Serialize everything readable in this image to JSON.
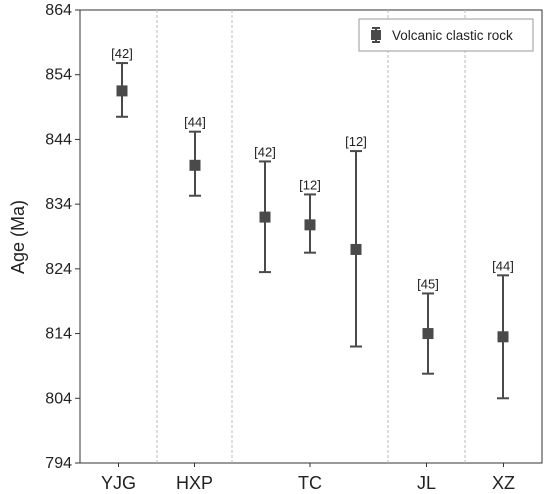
{
  "chart_data": {
    "type": "scatter",
    "ylabel": "Age (Ma)",
    "xlabel": "",
    "ylim": [
      794,
      864
    ],
    "yticks": [
      794,
      804,
      814,
      824,
      834,
      844,
      854,
      864
    ],
    "grid": "vertical dashed separators between groups",
    "legend": {
      "position": "top-right",
      "entries": [
        "Volcanic clastic rock"
      ]
    },
    "categories": [
      "YJG",
      "HXP",
      "TC",
      "JL",
      "XZ"
    ],
    "series": [
      {
        "name": "Volcanic clastic rock",
        "color": "#4a4a4a",
        "marker": "square",
        "points": [
          {
            "group": "YJG",
            "value": 851.5,
            "lower": 847.5,
            "upper": 855.8,
            "ref": "[42]"
          },
          {
            "group": "HXP",
            "value": 840.0,
            "lower": 835.3,
            "upper": 845.2,
            "ref": "[44]"
          },
          {
            "group": "TC",
            "value": 832.0,
            "lower": 823.5,
            "upper": 840.6,
            "ref": "[42]"
          },
          {
            "group": "TC",
            "value": 830.8,
            "lower": 826.5,
            "upper": 835.5,
            "ref": "[12]"
          },
          {
            "group": "TC",
            "value": 827.0,
            "lower": 812.0,
            "upper": 842.2,
            "ref": "[12]"
          },
          {
            "group": "JL",
            "value": 814.0,
            "lower": 807.8,
            "upper": 820.2,
            "ref": "[45]"
          },
          {
            "group": "XZ",
            "value": 813.5,
            "lower": 804.0,
            "upper": 823.0,
            "ref": "[44]"
          }
        ]
      }
    ]
  }
}
